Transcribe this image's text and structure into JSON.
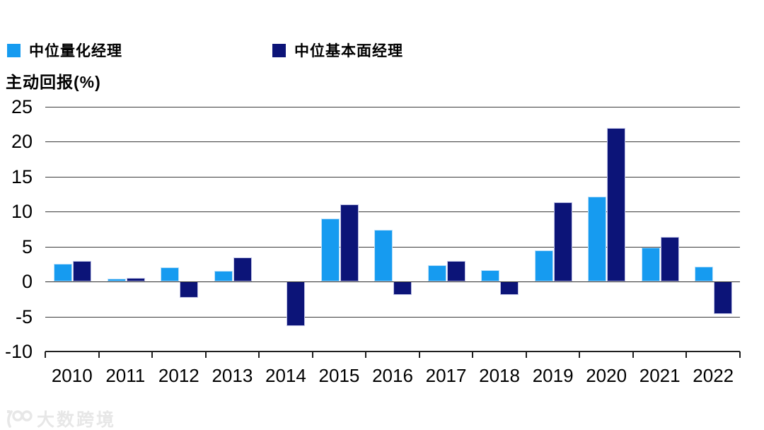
{
  "legend": {
    "items": [
      {
        "label": "中位量化经理",
        "color": "#169BF0"
      },
      {
        "label": "中位基本面经理",
        "color": "#0C1478"
      }
    ]
  },
  "axis_title": "主动回报(%)",
  "watermark": {
    "logo": "100-logo",
    "text": "大数跨境"
  },
  "colors": {
    "quant_blue": "#169BF0",
    "fundamental_navy": "#0C1478",
    "gridline": "#3b3b3b",
    "axis": "#1f1f1f",
    "watermark_gray": "#e7e7e7"
  },
  "chart_data": {
    "type": "bar",
    "title": "",
    "xlabel": "",
    "ylabel": "主动回报(%)",
    "categories": [
      "2010",
      "2011",
      "2012",
      "2013",
      "2014",
      "2015",
      "2016",
      "2017",
      "2018",
      "2019",
      "2020",
      "2021",
      "2022"
    ],
    "series": [
      {
        "name": "中位量化经理",
        "color": "#169BF0",
        "values": [
          2.5,
          0.4,
          2.0,
          1.5,
          0.0,
          9.0,
          7.4,
          2.3,
          1.6,
          4.5,
          12.2,
          4.9,
          2.1
        ]
      },
      {
        "name": "中位基本面经理",
        "color": "#0C1478",
        "values": [
          2.9,
          0.5,
          -2.3,
          3.5,
          -6.4,
          11.0,
          -1.9,
          2.9,
          -1.9,
          11.3,
          22.0,
          6.4,
          -4.6
        ]
      }
    ],
    "ylim": [
      -10,
      25
    ],
    "yticks": [
      25,
      20,
      15,
      10,
      5,
      0,
      -5,
      -10
    ],
    "grid": true,
    "legend_position": "top-left"
  }
}
